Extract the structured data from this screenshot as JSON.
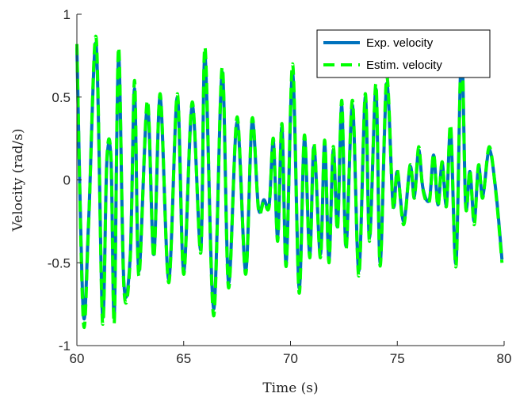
{
  "chart_data": {
    "type": "line",
    "title": "",
    "xlabel": "Time (s)",
    "ylabel": "Velocity (rad/s)",
    "xlim": [
      60,
      80
    ],
    "ylim": [
      -1,
      1
    ],
    "xticks": [
      60,
      65,
      70,
      75,
      80
    ],
    "yticks": [
      -1,
      -0.5,
      0,
      0.5,
      1
    ],
    "xtick_labels": [
      "60",
      "65",
      "70",
      "75",
      "80"
    ],
    "ytick_labels": [
      "-1",
      "-0.5",
      "0",
      "0.5",
      "1"
    ],
    "grid": false,
    "legend": "top-right",
    "series": [
      {
        "name": "Exp. velocity",
        "color": "#0072BD",
        "style": "solid",
        "x": [
          60.0,
          60.3,
          60.55,
          60.9,
          61.2,
          61.4,
          61.6,
          61.75,
          61.95,
          62.2,
          62.5,
          62.7,
          62.9,
          63.3,
          63.6,
          63.9,
          64.3,
          64.7,
          65.0,
          65.4,
          65.8,
          66.0,
          66.4,
          66.8,
          67.1,
          67.5,
          67.9,
          68.2,
          68.5,
          68.75,
          69.0,
          69.2,
          69.4,
          69.6,
          69.8,
          70.1,
          70.4,
          70.65,
          70.9,
          71.1,
          71.4,
          71.6,
          71.8,
          72.0,
          72.2,
          72.4,
          72.6,
          72.9,
          73.2,
          73.5,
          73.7,
          74.0,
          74.2,
          74.5,
          74.8,
          75.0,
          75.3,
          75.6,
          75.8,
          76.0,
          76.2,
          76.5,
          76.7,
          76.9,
          77.1,
          77.3,
          77.5,
          77.75,
          78.0,
          78.2,
          78.4,
          78.6,
          78.8,
          79.0,
          79.3,
          79.6,
          79.9
        ],
        "y": [
          0.8,
          -0.8,
          -0.25,
          0.82,
          -0.82,
          0.1,
          0.12,
          -0.82,
          0.75,
          -0.62,
          -0.45,
          0.55,
          -0.55,
          0.45,
          -0.45,
          0.5,
          -0.6,
          0.5,
          -0.55,
          0.45,
          -0.42,
          0.75,
          -0.78,
          0.65,
          -0.62,
          0.35,
          -0.55,
          0.35,
          -0.17,
          -0.12,
          -0.15,
          0.23,
          -0.35,
          0.32,
          -0.5,
          0.65,
          -0.65,
          0.25,
          -0.45,
          0.2,
          -0.45,
          0.22,
          -0.48,
          0.18,
          -0.28,
          0.45,
          -0.4,
          0.45,
          -0.55,
          0.5,
          -0.35,
          0.55,
          -0.5,
          0.58,
          -0.15,
          0.05,
          -0.25,
          0.08,
          -0.1,
          0.18,
          -0.05,
          -0.12,
          0.15,
          -0.15,
          0.1,
          -0.15,
          0.3,
          -0.5,
          0.8,
          -0.15,
          0.05,
          -0.25,
          0.08,
          -0.1,
          0.18,
          -0.05,
          -0.48
        ]
      },
      {
        "name": "Estim. velocity",
        "color": "#00FF00",
        "style": "dashed",
        "x": [
          60.0,
          60.3,
          60.55,
          60.9,
          61.2,
          61.4,
          61.6,
          61.75,
          61.95,
          62.2,
          62.5,
          62.7,
          62.9,
          63.3,
          63.6,
          63.9,
          64.3,
          64.7,
          65.0,
          65.4,
          65.8,
          66.0,
          66.4,
          66.8,
          67.1,
          67.5,
          67.9,
          68.2,
          68.5,
          68.75,
          69.0,
          69.2,
          69.4,
          69.6,
          69.8,
          70.1,
          70.4,
          70.65,
          70.9,
          71.1,
          71.4,
          71.6,
          71.8,
          72.0,
          72.2,
          72.4,
          72.6,
          72.9,
          73.2,
          73.5,
          73.7,
          74.0,
          74.2,
          74.5,
          74.8,
          75.0,
          75.3,
          75.6,
          75.8,
          76.0,
          76.2,
          76.5,
          76.7,
          76.9,
          77.1,
          77.3,
          77.5,
          77.75,
          78.0,
          78.2,
          78.4,
          78.6,
          78.8,
          79.0,
          79.3,
          79.6,
          79.9
        ],
        "y": [
          0.82,
          -0.85,
          -0.27,
          0.86,
          -0.86,
          0.12,
          0.13,
          -0.86,
          0.8,
          -0.65,
          -0.47,
          0.6,
          -0.58,
          0.48,
          -0.47,
          0.52,
          -0.62,
          0.52,
          -0.57,
          0.47,
          -0.44,
          0.8,
          -0.82,
          0.68,
          -0.65,
          0.38,
          -0.57,
          0.37,
          -0.18,
          -0.13,
          -0.16,
          0.25,
          -0.37,
          0.34,
          -0.52,
          0.7,
          -0.68,
          0.27,
          -0.47,
          0.22,
          -0.47,
          0.24,
          -0.5,
          0.2,
          -0.3,
          0.48,
          -0.42,
          0.48,
          -0.58,
          0.52,
          -0.37,
          0.58,
          -0.52,
          0.62,
          -0.16,
          0.06,
          -0.27,
          0.09,
          -0.11,
          0.2,
          -0.06,
          -0.13,
          0.16,
          -0.16,
          0.11,
          -0.16,
          0.33,
          -0.52,
          0.82,
          -0.16,
          0.06,
          -0.27,
          0.09,
          -0.11,
          0.2,
          -0.06,
          -0.5
        ]
      }
    ]
  }
}
